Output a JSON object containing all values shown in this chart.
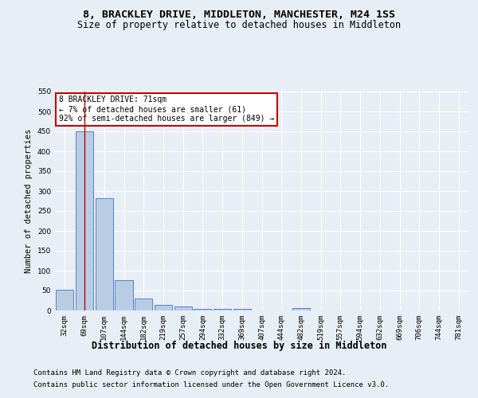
{
  "title": "8, BRACKLEY DRIVE, MIDDLETON, MANCHESTER, M24 1SS",
  "subtitle": "Size of property relative to detached houses in Middleton",
  "xlabel": "Distribution of detached houses by size in Middleton",
  "ylabel": "Number of detached properties",
  "categories": [
    "32sqm",
    "69sqm",
    "107sqm",
    "144sqm",
    "182sqm",
    "219sqm",
    "257sqm",
    "294sqm",
    "332sqm",
    "369sqm",
    "407sqm",
    "444sqm",
    "482sqm",
    "519sqm",
    "557sqm",
    "594sqm",
    "632sqm",
    "669sqm",
    "706sqm",
    "744sqm",
    "781sqm"
  ],
  "values": [
    52,
    450,
    283,
    77,
    31,
    15,
    10,
    5,
    5,
    5,
    0,
    0,
    6,
    0,
    0,
    0,
    0,
    0,
    0,
    0,
    0
  ],
  "bar_color": "#b8cce4",
  "bar_edge_color": "#4472c4",
  "highlight_index": 1,
  "highlight_color": "#c00000",
  "annotation_line1": "8 BRACKLEY DRIVE: 71sqm",
  "annotation_line2": "← 7% of detached houses are smaller (61)",
  "annotation_line3": "92% of semi-detached houses are larger (849) →",
  "annotation_box_color": "#ffffff",
  "annotation_box_edge": "#c00000",
  "ylim": [
    0,
    550
  ],
  "yticks": [
    0,
    50,
    100,
    150,
    200,
    250,
    300,
    350,
    400,
    450,
    500,
    550
  ],
  "footer1": "Contains HM Land Registry data © Crown copyright and database right 2024.",
  "footer2": "Contains public sector information licensed under the Open Government Licence v3.0.",
  "bg_color": "#e8eef5",
  "plot_bg_color": "#e8eef5",
  "grid_color": "#ffffff",
  "title_fontsize": 9.5,
  "subtitle_fontsize": 8.5,
  "xlabel_fontsize": 8.5,
  "ylabel_fontsize": 7.5,
  "tick_fontsize": 6.5,
  "footer_fontsize": 6.5
}
